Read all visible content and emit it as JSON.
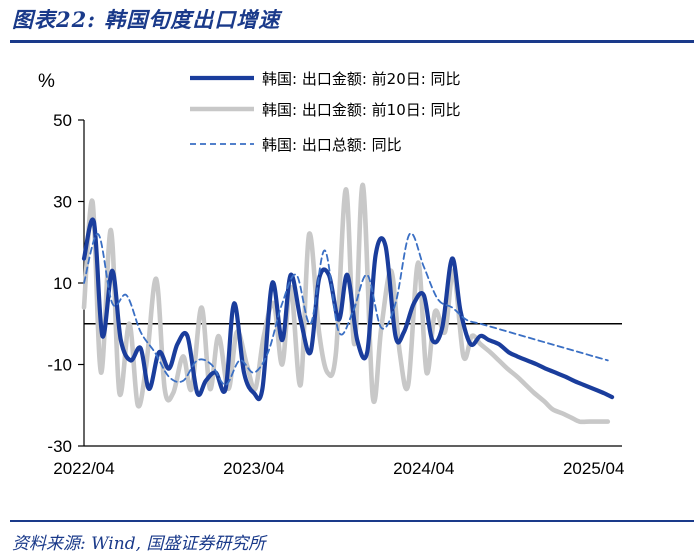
{
  "figure": {
    "title": "图表22:  韩国旬度出口增速",
    "source": "资料来源:  Wind,  国盛证券研究所"
  },
  "colors": {
    "series_20d": "#1a3d9c",
    "series_10d": "#c8c8c8",
    "series_total": "#3a6fc4",
    "axis": "#000000",
    "accent": "#1a3a8a"
  },
  "chart_data": {
    "type": "line",
    "title": "",
    "xlabel": "",
    "ylabel": "%",
    "ylim": [
      -30,
      50
    ],
    "yticks": [
      50,
      30,
      10,
      -10,
      -30
    ],
    "xlim": [
      0,
      38
    ],
    "x_tick_labels": [
      {
        "x": 0,
        "label": "2022/04"
      },
      {
        "x": 12,
        "label": "2023/04"
      },
      {
        "x": 24,
        "label": "2024/04"
      },
      {
        "x": 36,
        "label": "2025/04"
      }
    ],
    "zero_line": 0,
    "grid": false,
    "legend_position": "top-center",
    "series": [
      {
        "name": "韩国: 出口金额: 前20日: 同比",
        "style": "thick-solid",
        "x": [
          0,
          0.7,
          1.3,
          2,
          2.6,
          3.3,
          4,
          4.6,
          5.3,
          6,
          6.6,
          7.3,
          8,
          8.6,
          9.3,
          10,
          10.6,
          11.3,
          12,
          12.6,
          13.3,
          14,
          14.6,
          15.3,
          16,
          16.6,
          17.3,
          18,
          18.6,
          19.3,
          20,
          20.6,
          21.3,
          22,
          22.6,
          23.3,
          24,
          24.6,
          25.3,
          26,
          26.6,
          27.3,
          28,
          28.6,
          29.3,
          30,
          30.6,
          31.3,
          32,
          32.6,
          33.3,
          34,
          34.6,
          35.3,
          36,
          36.7,
          37.3
        ],
        "y": [
          16,
          25,
          -3,
          13,
          -4,
          -9,
          -6,
          -16,
          -7,
          -11,
          -5,
          -3,
          -17,
          -14,
          -12,
          -16,
          5,
          -12,
          -17,
          -16,
          10,
          -4,
          12,
          1,
          -7,
          11,
          12,
          1,
          12,
          -4,
          -7,
          17,
          19,
          -3,
          -2,
          5,
          7,
          -4,
          -1,
          16,
          3,
          -5,
          -3,
          -4,
          -5,
          -7,
          -8,
          -9,
          -10,
          -11,
          -12,
          -13,
          -14,
          -15,
          -16,
          -17,
          -18
        ]
      },
      {
        "name": "韩国: 出口金额: 前10日: 同比",
        "style": "thick-solid",
        "x": [
          0,
          0.6,
          1.2,
          1.9,
          2.5,
          3.2,
          3.8,
          4.4,
          5.1,
          5.7,
          6.3,
          7,
          7.6,
          8.3,
          8.9,
          9.5,
          10.2,
          10.8,
          11.5,
          12.1,
          12.7,
          13.4,
          14,
          14.6,
          15.3,
          15.9,
          16.6,
          17.2,
          17.8,
          18.5,
          19.1,
          19.7,
          20.4,
          21,
          21.7,
          22.3,
          22.9,
          23.6,
          24.2,
          24.8,
          25.5,
          26.1,
          26.8,
          27.4,
          28,
          28.7,
          29.3,
          29.9,
          30.6,
          31.2,
          31.8,
          32.5,
          33.1,
          33.8,
          34.4,
          35,
          35.7,
          36.3,
          37
        ],
        "y": [
          4,
          30,
          -12,
          23,
          -17,
          0,
          -20,
          -10,
          11,
          -16,
          -17,
          -8,
          -16,
          4,
          -16,
          -3,
          -16,
          -2,
          -10,
          -16,
          -3,
          5,
          -10,
          9,
          -15,
          22,
          -2,
          -12,
          -7,
          33,
          -5,
          34,
          -18,
          -1,
          13,
          -7,
          -15,
          15,
          -12,
          3,
          -2,
          13,
          -8,
          -3,
          -5,
          -7,
          -9,
          -11,
          -13,
          -15,
          -17,
          -19,
          -21,
          -22,
          -23,
          -24,
          -24,
          -24,
          -24
        ]
      },
      {
        "name": "韩国: 出口总额: 同比",
        "style": "dashed",
        "x": [
          0,
          1,
          2,
          3,
          4,
          5,
          6,
          7,
          8,
          9,
          10,
          11,
          12,
          13,
          14,
          15,
          16,
          17,
          18,
          19,
          20,
          21,
          22,
          23,
          24,
          25,
          26,
          27,
          28,
          29,
          30,
          31,
          32,
          33,
          34,
          35,
          36,
          37
        ],
        "y": [
          10,
          22,
          5,
          7,
          -2,
          -7,
          -13,
          -14,
          -9,
          -10,
          -15,
          -9,
          -12,
          -7,
          5,
          12,
          0,
          18,
          -2,
          3,
          12,
          -1,
          5,
          22,
          14,
          6,
          4,
          1,
          0,
          -1,
          -2,
          -3,
          -4,
          -5,
          -6,
          -7,
          -8,
          -9
        ]
      }
    ]
  }
}
